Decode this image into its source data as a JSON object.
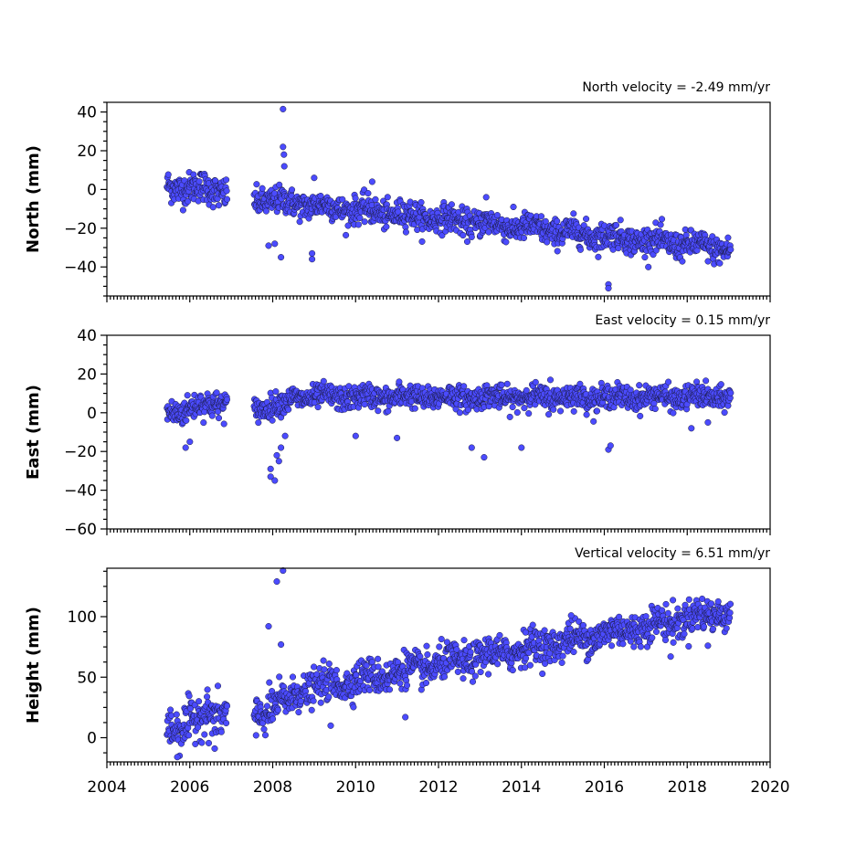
{
  "chart_data": [
    {
      "type": "scatter",
      "annotation": "North velocity = -2.49 mm/yr",
      "ylabel": "North (mm)",
      "xlim": [
        2004,
        2020
      ],
      "ylim": [
        -55,
        45
      ],
      "yticks": [
        -40,
        -20,
        0,
        20,
        40
      ],
      "yticklabels": [
        "−40",
        "−20",
        "0",
        "20",
        "40"
      ],
      "show_xticklabels": false,
      "point_color": "#4b4bff",
      "segments": [
        {
          "x0": 2005.45,
          "x1": 2006.9,
          "y0": 2,
          "y1": -1,
          "noise": 4
        },
        {
          "x0": 2007.55,
          "x1": 2019.05,
          "y0": -5,
          "y1": -31,
          "noise": 3.5
        }
      ],
      "outliers": [
        {
          "x": 2008.25,
          "y": 41.5
        },
        {
          "x": 2008.25,
          "y": 22
        },
        {
          "x": 2008.27,
          "y": 18
        },
        {
          "x": 2008.28,
          "y": 12
        },
        {
          "x": 2007.9,
          "y": -29
        },
        {
          "x": 2008.05,
          "y": -28
        },
        {
          "x": 2008.2,
          "y": -35
        },
        {
          "x": 2008.95,
          "y": -33
        },
        {
          "x": 2008.95,
          "y": -36
        },
        {
          "x": 2016.1,
          "y": -49
        },
        {
          "x": 2016.1,
          "y": -51
        },
        {
          "x": 2013.15,
          "y": -4
        },
        {
          "x": 2010.4,
          "y": 4
        },
        {
          "x": 2009.0,
          "y": 6
        }
      ]
    },
    {
      "type": "scatter",
      "annotation": "East velocity = 0.15 mm/yr",
      "ylabel": "East (mm)",
      "xlim": [
        2004,
        2020
      ],
      "ylim": [
        -60,
        40
      ],
      "yticks": [
        -60,
        -40,
        -20,
        0,
        20,
        40
      ],
      "yticklabels": [
        "−60",
        "−40",
        "−20",
        "0",
        "20",
        "40"
      ],
      "show_xticklabels": false,
      "point_color": "#4b4bff",
      "segments": [
        {
          "x0": 2005.45,
          "x1": 2006.9,
          "y0": 0,
          "y1": 6,
          "noise": 3.5
        },
        {
          "x0": 2007.55,
          "x1": 2008.4,
          "y0": 2,
          "y1": 5,
          "noise": 3
        },
        {
          "x0": 2008.4,
          "x1": 2019.05,
          "y0": 8,
          "y1": 8,
          "noise": 3
        }
      ],
      "outliers": [
        {
          "x": 2005.9,
          "y": -18
        },
        {
          "x": 2006.0,
          "y": -15
        },
        {
          "x": 2007.95,
          "y": -29
        },
        {
          "x": 2007.95,
          "y": -33
        },
        {
          "x": 2008.05,
          "y": -35
        },
        {
          "x": 2008.1,
          "y": -22
        },
        {
          "x": 2008.15,
          "y": -25
        },
        {
          "x": 2008.2,
          "y": -18
        },
        {
          "x": 2008.3,
          "y": -12
        },
        {
          "x": 2010.0,
          "y": -12
        },
        {
          "x": 2011.0,
          "y": -13
        },
        {
          "x": 2011.05,
          "y": 16
        },
        {
          "x": 2013.1,
          "y": -23
        },
        {
          "x": 2012.8,
          "y": -18
        },
        {
          "x": 2014.0,
          "y": -18
        },
        {
          "x": 2014.7,
          "y": 17
        },
        {
          "x": 2016.1,
          "y": -19
        },
        {
          "x": 2016.15,
          "y": -17
        },
        {
          "x": 2018.1,
          "y": -8
        },
        {
          "x": 2018.5,
          "y": -5
        }
      ]
    },
    {
      "type": "scatter",
      "annotation": "Vertical velocity = 6.51 mm/yr",
      "ylabel": "Height (mm)",
      "xlim": [
        2004,
        2020
      ],
      "ylim": [
        -20,
        140
      ],
      "yticks": [
        0,
        50,
        100
      ],
      "yticklabels": [
        "0",
        "50",
        "100"
      ],
      "show_xticklabels": true,
      "xticks": [
        2004,
        2006,
        2008,
        2010,
        2012,
        2014,
        2016,
        2018,
        2020
      ],
      "xticklabels": [
        "2004",
        "2006",
        "2008",
        "2010",
        "2012",
        "2014",
        "2016",
        "2018",
        "2020"
      ],
      "point_color": "#4b4bff",
      "segments": [
        {
          "x0": 2005.45,
          "x1": 2006.9,
          "y0": 8,
          "y1": 22,
          "noise": 9
        },
        {
          "x0": 2007.55,
          "x1": 2008.5,
          "y0": 18,
          "y1": 32,
          "noise": 8
        },
        {
          "x0": 2008.5,
          "x1": 2019.05,
          "y0": 38,
          "y1": 105,
          "noise": 7
        }
      ],
      "outliers": [
        {
          "x": 2008.1,
          "y": 129
        },
        {
          "x": 2008.25,
          "y": 138
        },
        {
          "x": 2007.9,
          "y": 92
        },
        {
          "x": 2008.2,
          "y": 77
        },
        {
          "x": 2005.7,
          "y": -16
        },
        {
          "x": 2006.6,
          "y": -9
        },
        {
          "x": 2009.4,
          "y": 10
        },
        {
          "x": 2014.1,
          "y": 87
        },
        {
          "x": 2015.2,
          "y": 101
        },
        {
          "x": 2017.6,
          "y": 67
        },
        {
          "x": 2018.5,
          "y": 76
        },
        {
          "x": 2011.2,
          "y": 17
        },
        {
          "x": 2007.6,
          "y": 2
        }
      ]
    }
  ]
}
